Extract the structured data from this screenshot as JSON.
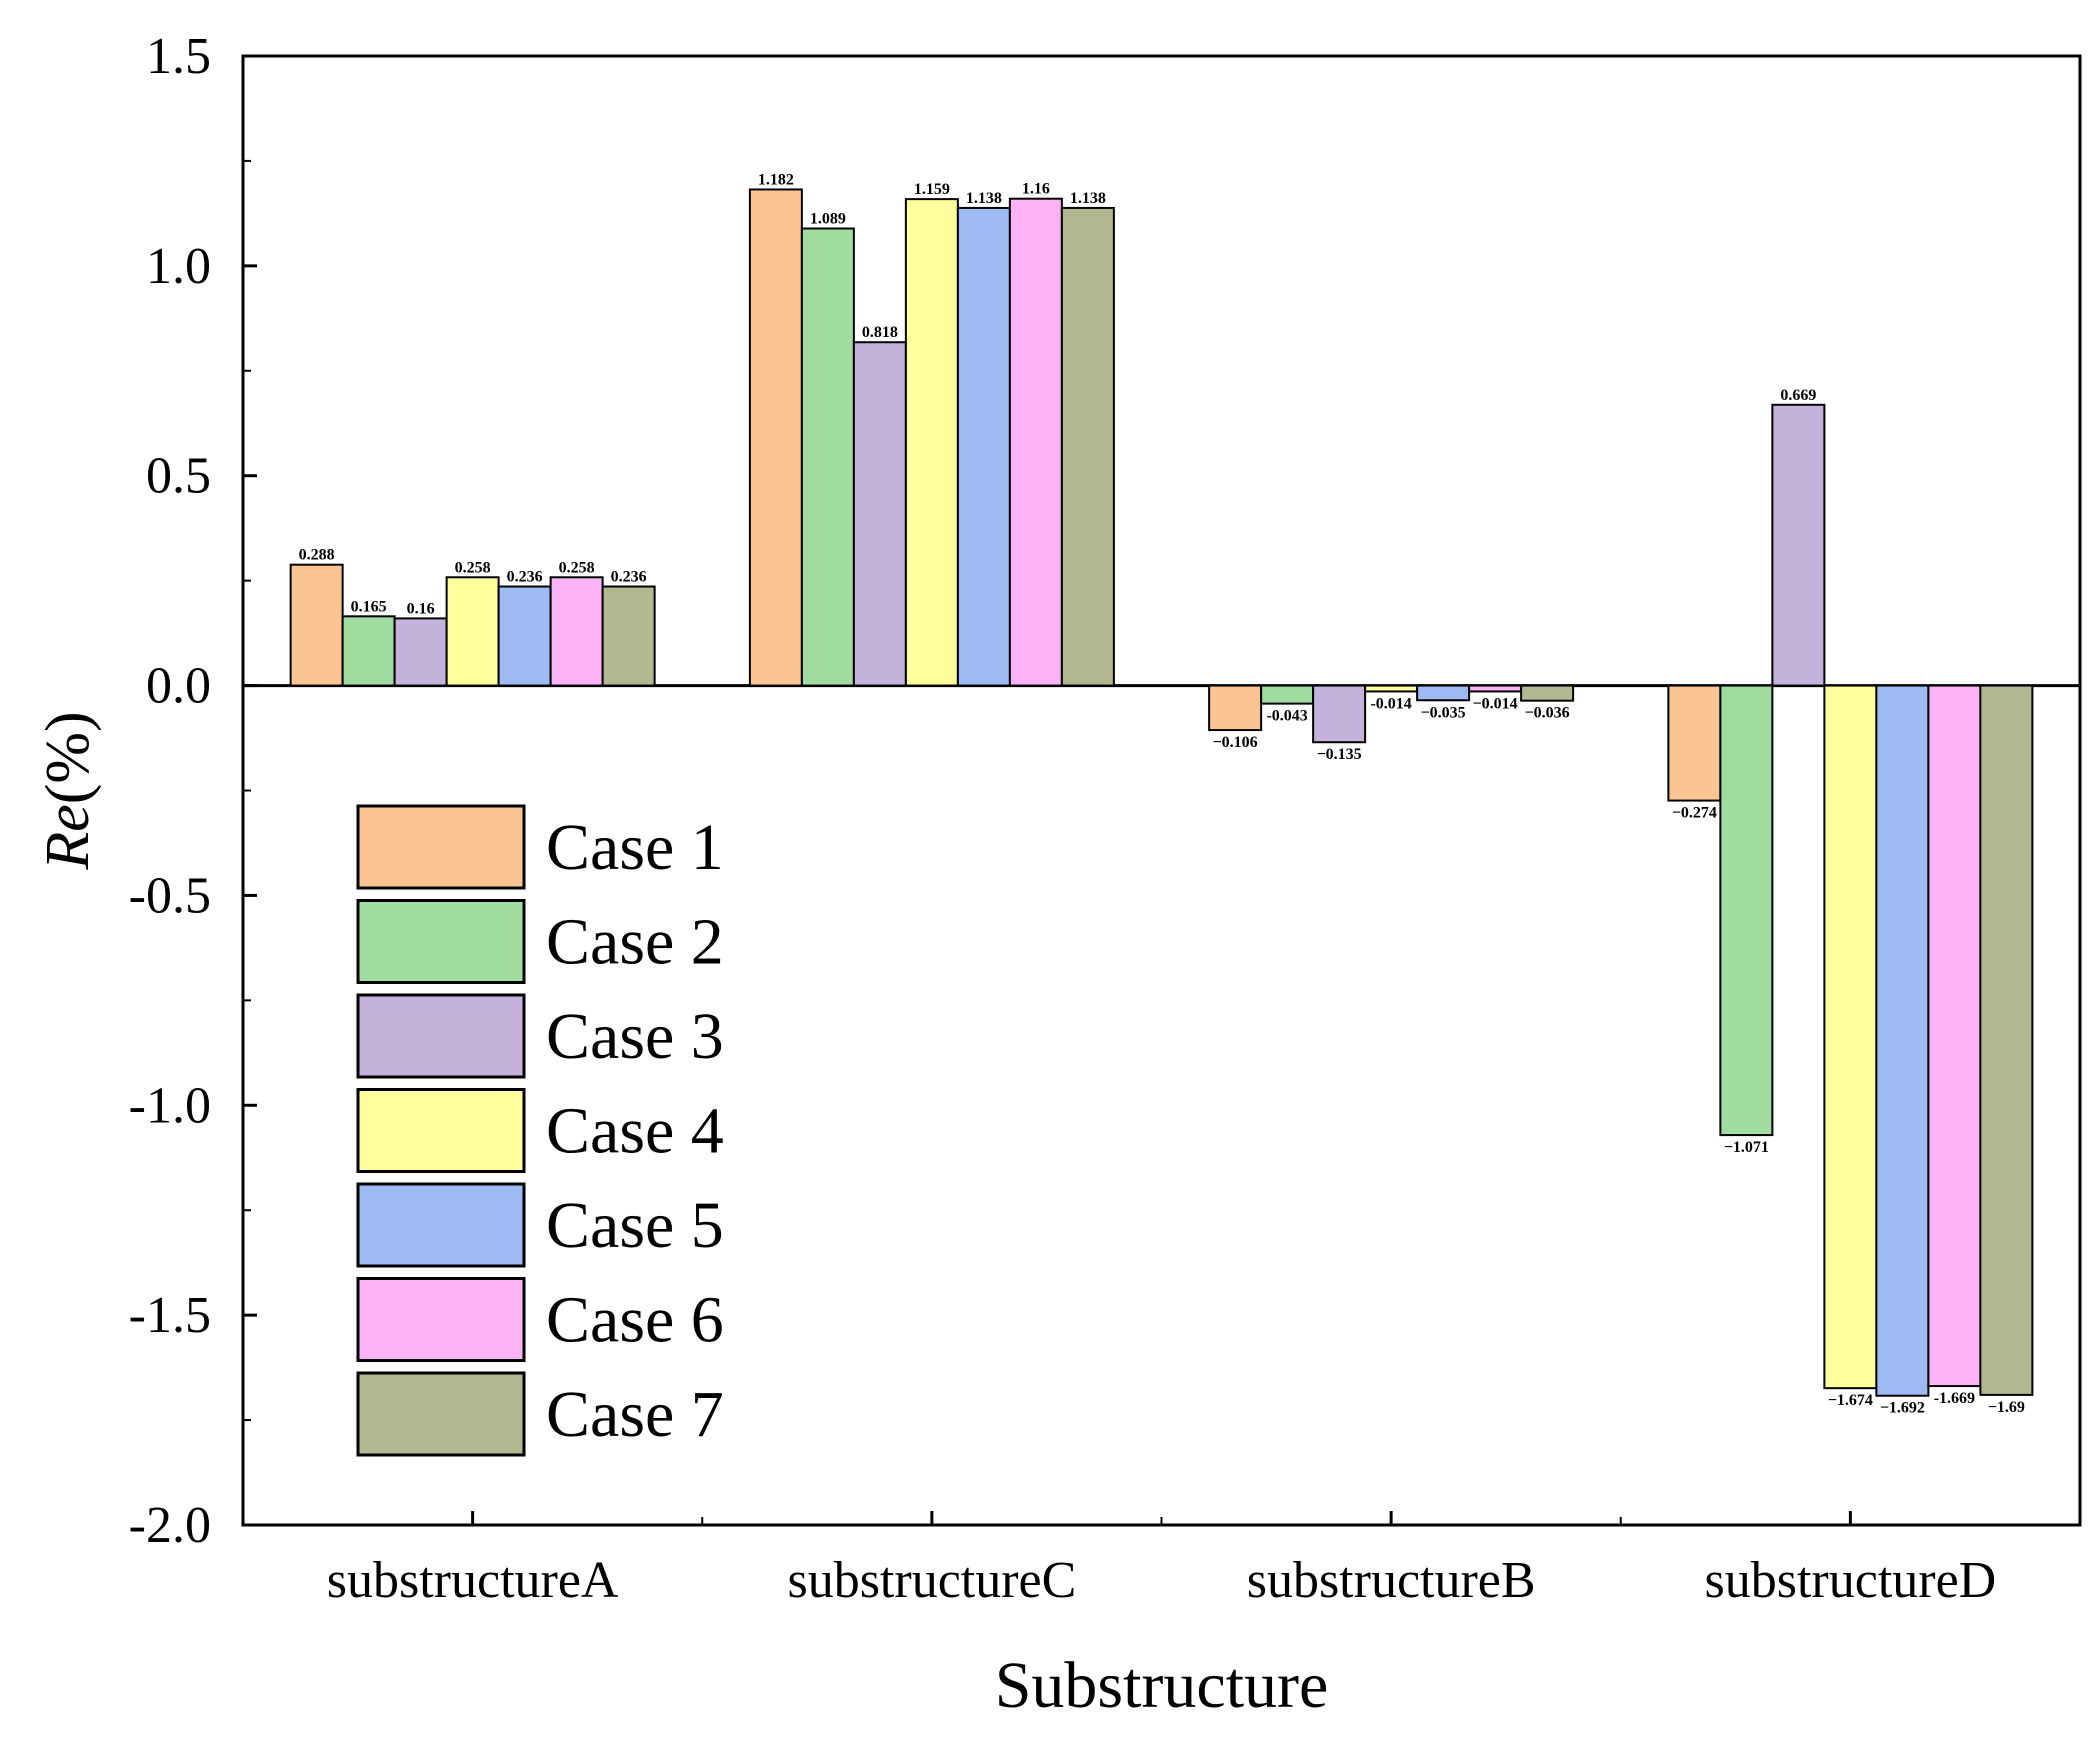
{
  "chart_data": {
    "type": "bar",
    "title": "",
    "xlabel": "Substructure",
    "ylabel": "Re(%)",
    "ylabel_parts": {
      "italic": "Re",
      "rest": "(%)"
    },
    "ylim": [
      -2.0,
      1.5
    ],
    "yticks": [
      -2.0,
      -1.5,
      -1.0,
      -0.5,
      0.0,
      0.5,
      1.0,
      1.5
    ],
    "ytick_labels": [
      "-2.0",
      "-1.5",
      "-1.0",
      "-0.5",
      "0.0",
      "0.5",
      "1.0",
      "1.5"
    ],
    "categories": [
      "substructureA",
      "substructureC",
      "substructureB",
      "substructureD"
    ],
    "legend_position": "lower-left",
    "series": [
      {
        "name": "Case 1",
        "color": "#FBC493",
        "values": [
          0.288,
          1.182,
          -0.106,
          -0.274
        ],
        "labels": [
          "0.288",
          "1.182",
          "−0.106",
          "−0.274"
        ]
      },
      {
        "name": "Case 2",
        "color": "#A0DB9F",
        "values": [
          0.165,
          1.089,
          -0.043,
          -1.071
        ],
        "labels": [
          "0.165",
          "1.089",
          "-0.043",
          "−1.071"
        ]
      },
      {
        "name": "Case 3",
        "color": "#C4B2DB",
        "values": [
          0.16,
          0.818,
          -0.135,
          0.669
        ],
        "labels": [
          "0.16",
          "0.818",
          "−0.135",
          "0.669"
        ]
      },
      {
        "name": "Case 4",
        "color": "#FEFE9C",
        "values": [
          0.258,
          1.159,
          -0.014,
          -1.674
        ],
        "labels": [
          "0.258",
          "1.159",
          "-0.014",
          "−1.674"
        ]
      },
      {
        "name": "Case 5",
        "color": "#9DBAF3",
        "values": [
          0.236,
          1.138,
          -0.035,
          -1.692
        ],
        "labels": [
          "0.236",
          "1.138",
          "−0.035",
          "−1.692"
        ]
      },
      {
        "name": "Case 6",
        "color": "#FCB3F6",
        "values": [
          0.258,
          1.16,
          -0.014,
          -1.669
        ],
        "labels": [
          "0.258",
          "1.16",
          "−0.014",
          "-1.669"
        ]
      },
      {
        "name": "Case 7",
        "color": "#B3B791",
        "values": [
          0.236,
          1.138,
          -0.036,
          -1.69
        ],
        "labels": [
          "0.236",
          "1.138",
          "−0.036",
          "−1.69"
        ]
      }
    ]
  }
}
